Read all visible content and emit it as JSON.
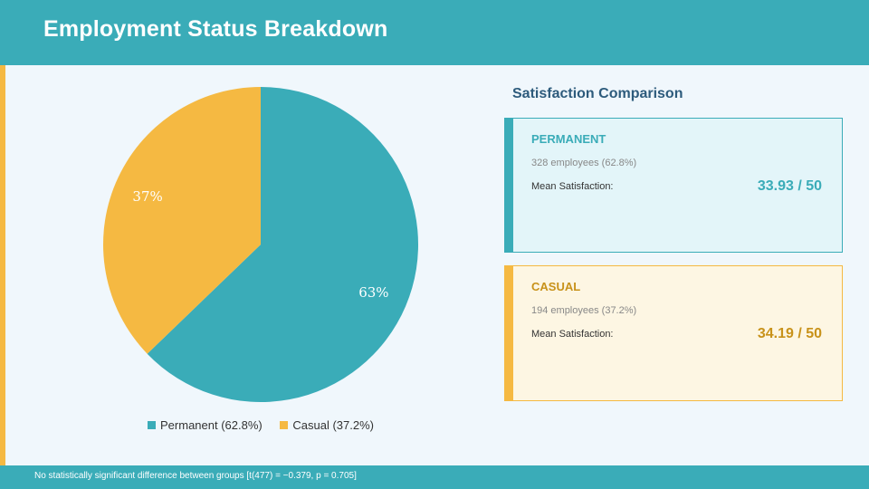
{
  "header": {
    "title": "Employment Status Breakdown"
  },
  "chart_data": {
    "type": "pie",
    "categories": [
      "Permanent",
      "Casual"
    ],
    "values": [
      62.8,
      37.2
    ],
    "data_labels": [
      "63%",
      "37%"
    ],
    "colors": [
      "#3aacb8",
      "#f5b942"
    ],
    "legend": [
      "Permanent (62.8%)",
      "Casual (37.2%)"
    ],
    "legend_position": "bottom"
  },
  "side_panel": {
    "title": "Satisfaction Comparison",
    "cards": [
      {
        "title": "PERMANENT",
        "count": "328 employees  (62.8%)",
        "label": "Mean Satisfaction:",
        "value": "33.93 / 50",
        "color": "#3aacb8"
      },
      {
        "title": "CASUAL",
        "count": "194 employees  (37.2%)",
        "label": "Mean Satisfaction:",
        "value": "34.19 / 50",
        "color": "#f5b942"
      }
    ]
  },
  "footer": {
    "note": "No statistically significant difference between groups  [t(477) = −0.379, p = 0.705]"
  }
}
